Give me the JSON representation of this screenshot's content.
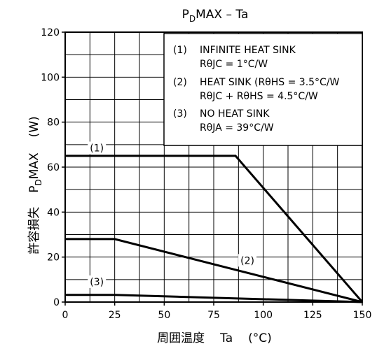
{
  "chart_data": {
    "type": "line",
    "title": {
      "main": "P",
      "sub": "D",
      "rest": "MAX – Ta"
    },
    "xlabel": {
      "prefix": "周囲温度",
      "var": "Ta",
      "unit": "(°C)"
    },
    "ylabel": {
      "prefix": "許容損失",
      "main": "P",
      "sub": "D",
      "rest": "MAX",
      "unit": "(W)"
    },
    "xlim": [
      0,
      150
    ],
    "ylim": [
      0,
      120
    ],
    "xticks": [
      0,
      25,
      50,
      75,
      100,
      125,
      150
    ],
    "yticks": [
      0,
      20,
      40,
      60,
      80,
      100,
      120
    ],
    "grid": true,
    "series": [
      {
        "name": "(1)",
        "points": [
          [
            0,
            65
          ],
          [
            86,
            65
          ],
          [
            150,
            0
          ]
        ]
      },
      {
        "name": "(2)",
        "points": [
          [
            0,
            28
          ],
          [
            25,
            28
          ],
          [
            150,
            0
          ]
        ]
      },
      {
        "name": "(3)",
        "points": [
          [
            0,
            3.2
          ],
          [
            25,
            3.2
          ],
          [
            150,
            0
          ]
        ]
      }
    ],
    "legend": {
      "placement": "top-right",
      "entries": [
        {
          "num": "(1)",
          "line1": "INFINITE HEAT SINK",
          "line2": "RθJC = 1°C/W"
        },
        {
          "num": "(2)",
          "line1": "HEAT SINK (RθHS = 3.5°C/W",
          "line2": "RθJC + RθHS = 4.5°C/W"
        },
        {
          "num": "(3)",
          "line1": "NO HEAT SINK",
          "line2": "RθJA = 39°C/W"
        }
      ]
    },
    "colors": {
      "line": "#000000",
      "grid": "#000000",
      "background": "#ffffff"
    }
  }
}
